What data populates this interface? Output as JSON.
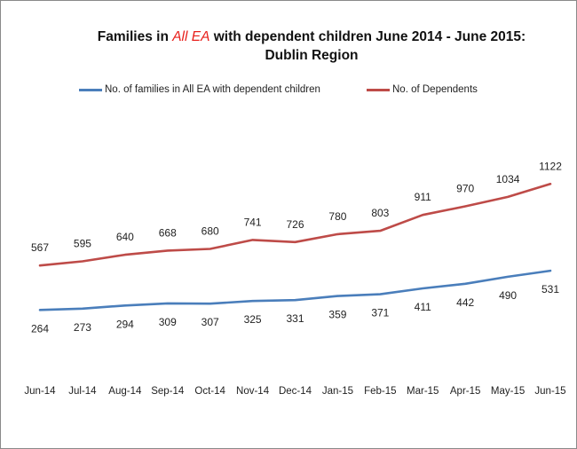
{
  "chart_data": {
    "type": "line",
    "title_parts": [
      "Families in ",
      "All EA",
      " with dependent children June 2014 - June 2015: Dublin Region"
    ],
    "categories": [
      "Jun-14",
      "Jul-14",
      "Aug-14",
      "Sep-14",
      "Oct-14",
      "Nov-14",
      "Dec-14",
      "Jan-15",
      "Feb-15",
      "Mar-15",
      "Apr-15",
      "May-15",
      "Jun-15"
    ],
    "series": [
      {
        "name": "No. of families in All EA with dependent children",
        "color": "#4a7ebb",
        "values": [
          264,
          273,
          294,
          309,
          307,
          325,
          331,
          359,
          371,
          411,
          442,
          490,
          531
        ],
        "label_position": "below"
      },
      {
        "name": "No. of Dependents",
        "color": "#be4b48",
        "values": [
          567,
          595,
          640,
          668,
          680,
          741,
          726,
          780,
          803,
          911,
          970,
          1034,
          1122
        ],
        "label_position": "above"
      }
    ],
    "xlabel": "",
    "ylabel": "",
    "ylim": [
      0,
      1300
    ],
    "legend": "top-center",
    "grid": false
  }
}
